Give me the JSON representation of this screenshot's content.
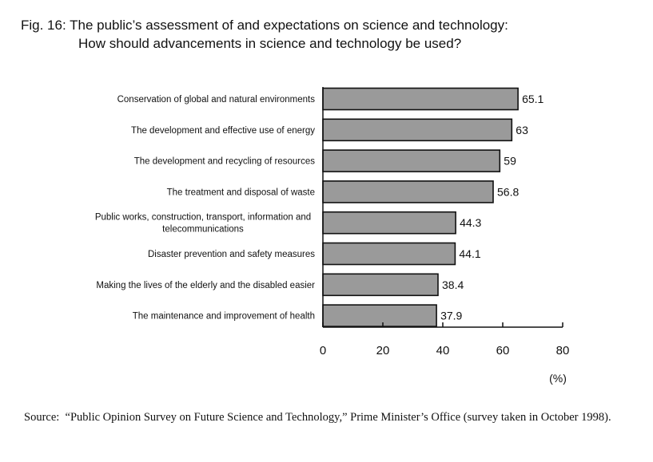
{
  "title_line1": "Fig. 16: The public’s assessment of and expectations on science and technology:",
  "title_line2": "How should advancements in science and technology be used?",
  "source_label": "Source:",
  "source_text": "“Public Opinion Survey on Future Science and Technology,” Prime Minister’s Office (survey taken in October 1998).",
  "chart_data": {
    "type": "bar",
    "orientation": "horizontal",
    "categories": [
      [
        "Conservation of global and natural environments"
      ],
      [
        "The development and effective use of energy"
      ],
      [
        "The development and recycling of resources"
      ],
      [
        "The treatment and disposal of waste"
      ],
      [
        "Public works, construction, transport, information and",
        "telecommunications"
      ],
      [
        "Disaster prevention and safety measures"
      ],
      [
        "Making the lives of the elderly and the disabled easier"
      ],
      [
        "The maintenance and improvement of health"
      ]
    ],
    "values": [
      65.1,
      63,
      59,
      56.8,
      44.3,
      44.1,
      38.4,
      37.9
    ],
    "value_labels": [
      "65.1",
      "63",
      "59",
      "56.8",
      "44.3",
      "44.1",
      "38.4",
      "37.9"
    ],
    "xlim": [
      0,
      80
    ],
    "x_ticks": [
      "0",
      "20",
      "40",
      "60",
      "80"
    ],
    "x_tick_values": [
      0,
      20,
      40,
      60,
      80
    ],
    "unit_label": "(%)",
    "grid": false,
    "bar_color": "#9a9a9a",
    "bar_edge_color": "#111111"
  }
}
